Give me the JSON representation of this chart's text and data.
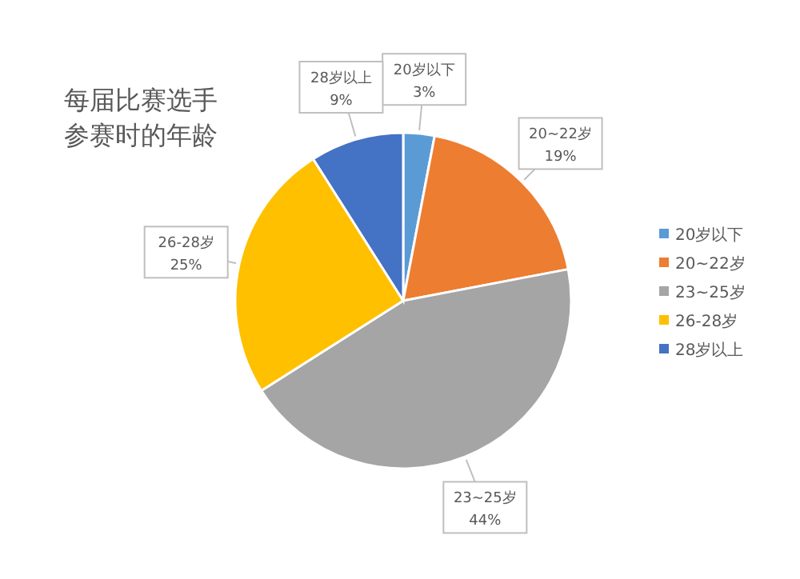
{
  "chart_data": {
    "type": "pie",
    "title": "每届比赛选手参赛时的年龄",
    "categories": [
      "20岁以下",
      "20~22岁",
      "23~25岁",
      "26-28岁",
      "28岁以上"
    ],
    "values": [
      3,
      19,
      44,
      25,
      9
    ],
    "colors": [
      "#5b9bd5",
      "#ed7d31",
      "#a5a5a5",
      "#ffc000",
      "#4472c4"
    ],
    "value_labels": [
      "3%",
      "19%",
      "44%",
      "25%",
      "9%"
    ],
    "legend": "right"
  }
}
